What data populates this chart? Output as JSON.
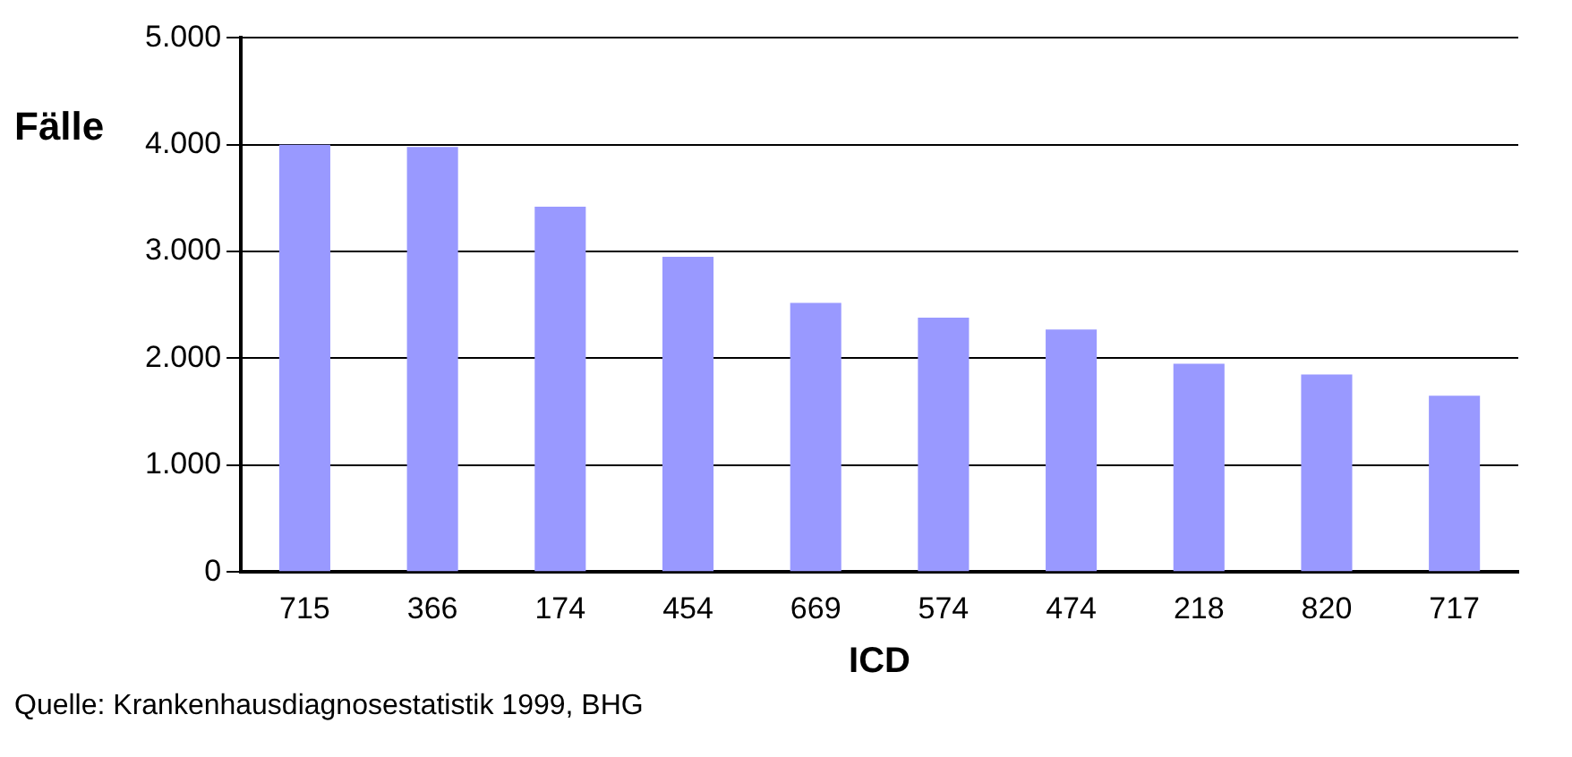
{
  "chart_data": {
    "type": "bar",
    "xlabel": "ICD",
    "ylabel": "Fälle",
    "categories": [
      "715",
      "366",
      "174",
      "454",
      "669",
      "574",
      "474",
      "218",
      "820",
      "717"
    ],
    "values": [
      4000,
      3980,
      3420,
      2950,
      2520,
      2380,
      2270,
      1950,
      1850,
      1650
    ],
    "color": "#9999ff",
    "ylim": [
      0,
      5000
    ],
    "yticks": [
      {
        "value": 0,
        "label": "0"
      },
      {
        "value": 1000,
        "label": "1.000"
      },
      {
        "value": 2000,
        "label": "2.000"
      },
      {
        "value": 3000,
        "label": "3.000"
      },
      {
        "value": 4000,
        "label": "4.000"
      },
      {
        "value": 5000,
        "label": "5.000"
      }
    ],
    "grid": "y",
    "legend": false,
    "annotations": [
      "Quelle: Krankenhausdiagnosestatistik 1999, BHG"
    ]
  }
}
